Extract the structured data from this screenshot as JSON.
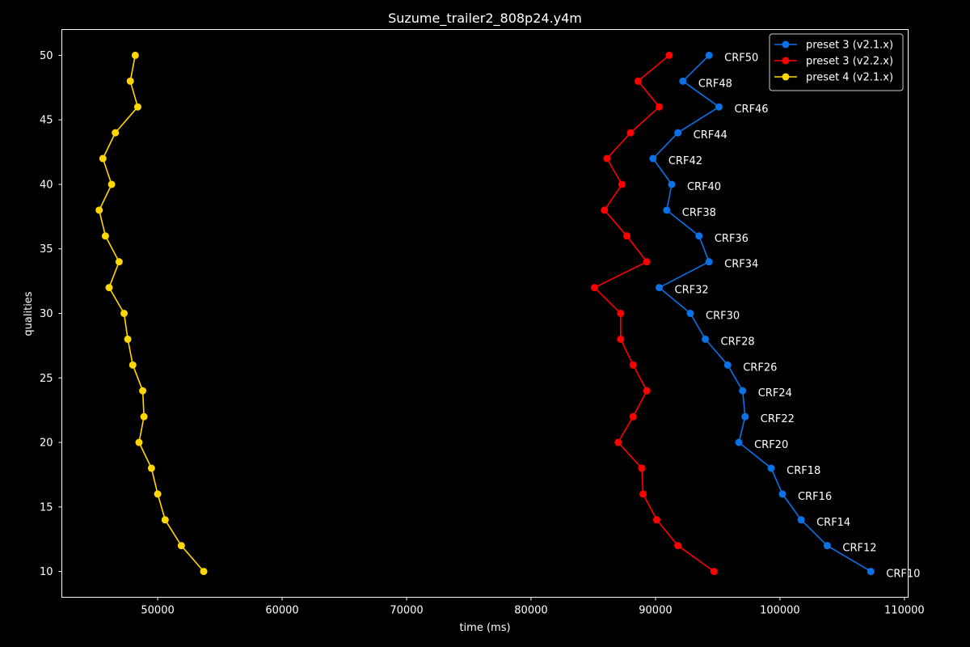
{
  "chart_data": {
    "type": "line",
    "title": "Suzume_trailer2_808p24.y4m",
    "xlabel": "time (ms)",
    "ylabel": "qualities",
    "xlim": [
      42300,
      110300
    ],
    "ylim": [
      8,
      52
    ],
    "x_ticks": [
      50000,
      60000,
      70000,
      80000,
      90000,
      100000,
      110000
    ],
    "y_ticks": [
      10,
      15,
      20,
      25,
      30,
      35,
      40,
      45,
      50
    ],
    "grid": false,
    "legend_position": "top-right",
    "background": "#000000",
    "y": [
      50,
      48,
      46,
      44,
      42,
      40,
      38,
      36,
      34,
      32,
      30,
      28,
      26,
      24,
      22,
      20,
      18,
      16,
      14,
      12,
      10
    ],
    "point_labels": [
      "CRF50",
      "CRF48",
      "CRF46",
      "CRF44",
      "CRF42",
      "CRF40",
      "CRF38",
      "CRF36",
      "CRF34",
      "CRF32",
      "CRF30",
      "CRF28",
      "CRF26",
      "CRF24",
      "CRF22",
      "CRF20",
      "CRF18",
      "CRF16",
      "CRF14",
      "CRF12",
      "CRF10"
    ],
    "labeled_series": 0,
    "series": [
      {
        "name": "preset 3 (v2.1.x)",
        "color": "#0a72e6",
        "x": [
          94300,
          92200,
          95100,
          91800,
          89800,
          91300,
          90900,
          93500,
          94300,
          90300,
          92800,
          94000,
          95800,
          97000,
          97200,
          96700,
          99300,
          100200,
          101700,
          103800,
          107300
        ]
      },
      {
        "name": "preset 3 (v2.2.x)",
        "color": "#ff0000",
        "x": [
          91100,
          88600,
          90300,
          88000,
          86100,
          87300,
          85900,
          87700,
          89300,
          85100,
          87200,
          87200,
          88200,
          89300,
          88200,
          87000,
          88900,
          89000,
          90100,
          91800,
          94700
        ]
      },
      {
        "name": "preset 4 (v2.1.x)",
        "color": "#ffd700",
        "x": [
          48200,
          47800,
          48400,
          46600,
          45600,
          46300,
          45300,
          45800,
          46900,
          46100,
          47300,
          47600,
          48000,
          48800,
          48900,
          48500,
          49500,
          50000,
          50600,
          51900,
          53700
        ]
      }
    ]
  }
}
